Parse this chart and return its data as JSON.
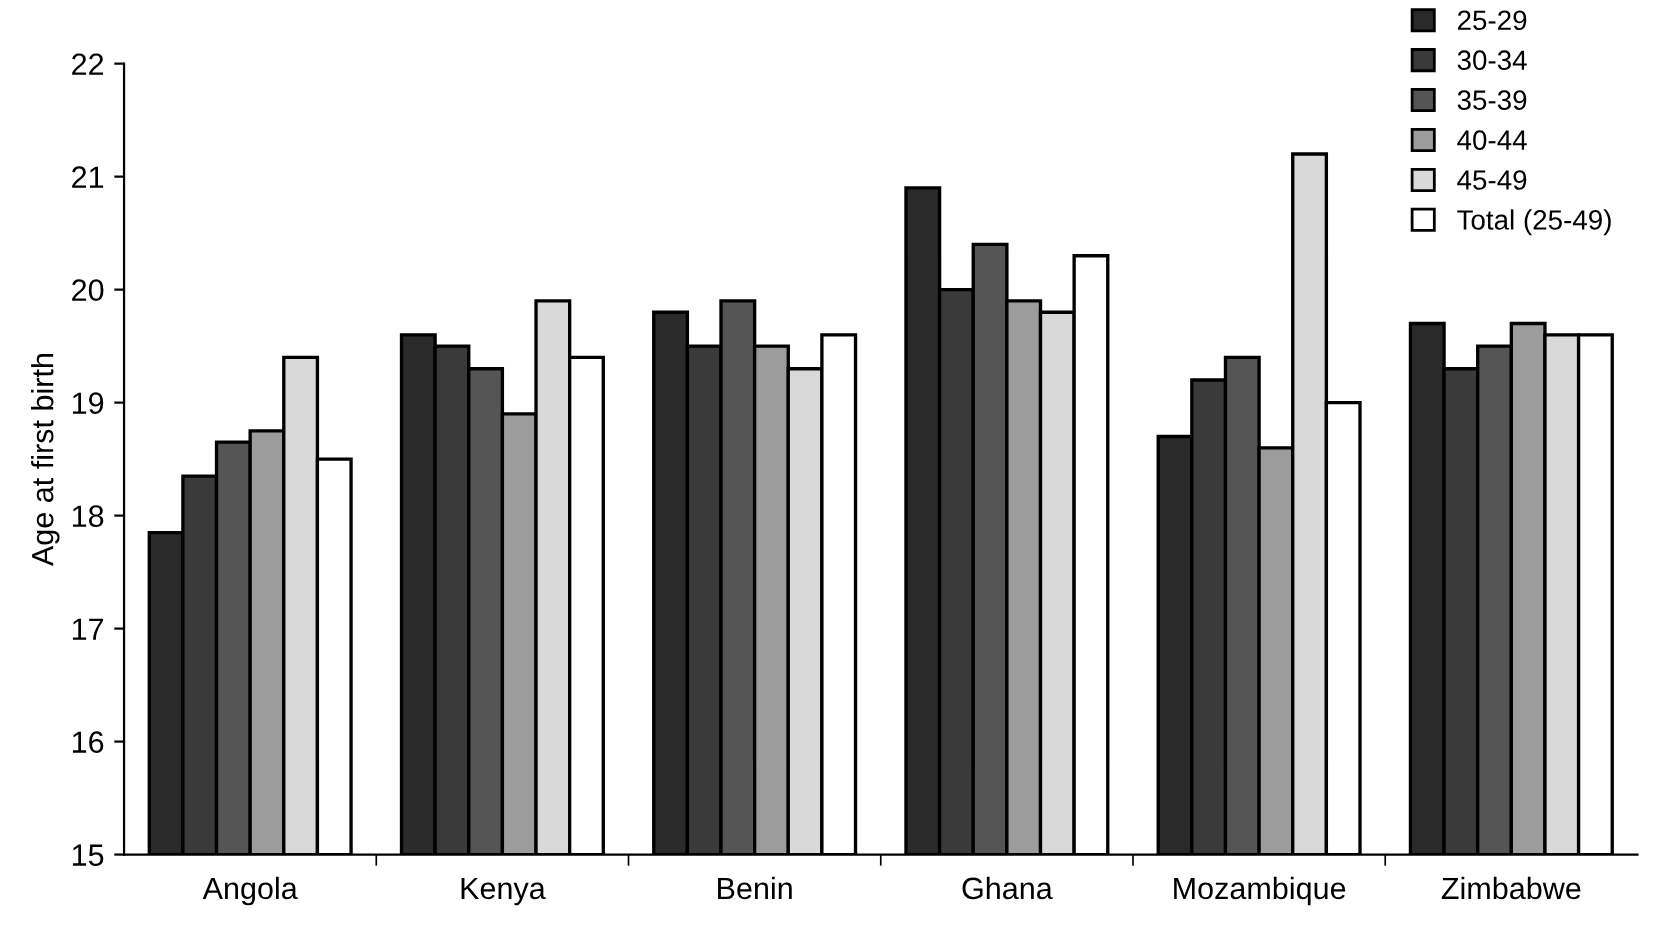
{
  "chart_data": {
    "type": "bar",
    "ylabel": "Age at first birth",
    "categories": [
      "Angola",
      "Kenya",
      "Benin",
      "Ghana",
      "Mozambique",
      "Zimbabwe"
    ],
    "series": [
      {
        "name": "25-29",
        "color": "#2a2a2a",
        "values": [
          17.85,
          19.6,
          19.8,
          20.9,
          18.7,
          19.7
        ]
      },
      {
        "name": "30-34",
        "color": "#3a3a3a",
        "values": [
          18.35,
          19.5,
          19.5,
          20.0,
          19.2,
          19.3
        ]
      },
      {
        "name": "35-39",
        "color": "#555555",
        "values": [
          18.65,
          19.3,
          19.9,
          20.4,
          19.4,
          19.5
        ]
      },
      {
        "name": "40-44",
        "color": "#9c9c9c",
        "values": [
          18.75,
          18.9,
          19.5,
          19.9,
          18.6,
          19.7
        ]
      },
      {
        "name": "45-49",
        "color": "#d9d9d9",
        "values": [
          19.4,
          19.9,
          19.3,
          19.8,
          21.2,
          19.6
        ]
      },
      {
        "name": "Total (25-49)",
        "color": "#ffffff",
        "values": [
          18.5,
          19.4,
          19.6,
          20.3,
          19.0,
          19.6
        ]
      }
    ],
    "ylim": [
      15,
      22
    ],
    "yticks": [
      15,
      16,
      17,
      18,
      19,
      20,
      21,
      22
    ],
    "grid": false,
    "legend": "top right"
  }
}
